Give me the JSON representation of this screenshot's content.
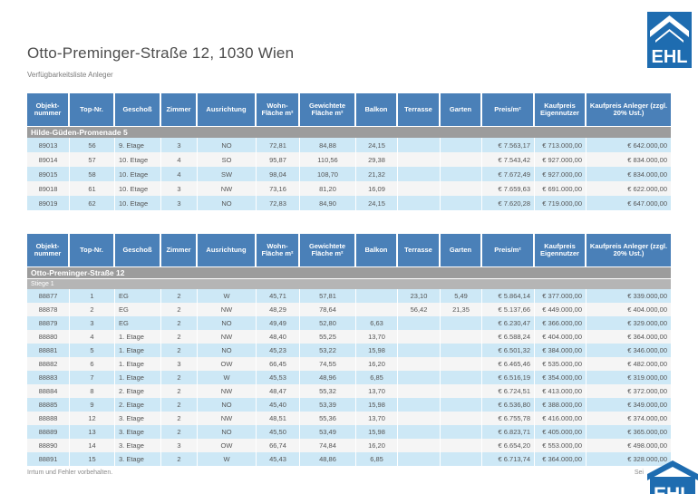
{
  "header": {
    "title": "Otto-Preminger-Straße 12, 1030 Wien",
    "subtitle": "Verfügbarkeitsliste Anleger",
    "logo_text": "EHL"
  },
  "columns": [
    "Objekt­nummer",
    "Top-Nr.",
    "Geschoß",
    "Zimmer",
    "Ausrichtung",
    "Wohn-Fläche m²",
    "Gewichtete Fläche m²",
    "Balkon",
    "Terrasse",
    "Garten",
    "Preis/m²",
    "Kaufpreis Eigennutzer",
    "Kaufpreis Anleger (zzgl. 20% Ust.)"
  ],
  "tables": [
    {
      "section": "Hilde-Güden-Promenade 5",
      "subsection": "",
      "rows": [
        [
          "89013",
          "56",
          "9. Etage",
          "3",
          "NO",
          "72,81",
          "84,88",
          "24,15",
          "",
          "",
          "€ 7.563,17",
          "€ 713.000,00",
          "€ 642.000,00"
        ],
        [
          "89014",
          "57",
          "10. Etage",
          "4",
          "SO",
          "95,87",
          "110,56",
          "29,38",
          "",
          "",
          "€ 7.543,42",
          "€ 927.000,00",
          "€ 834.000,00"
        ],
        [
          "89015",
          "58",
          "10. Etage",
          "4",
          "SW",
          "98,04",
          "108,70",
          "21,32",
          "",
          "",
          "€ 7.672,49",
          "€ 927.000,00",
          "€ 834.000,00"
        ],
        [
          "89018",
          "61",
          "10. Etage",
          "3",
          "NW",
          "73,16",
          "81,20",
          "16,09",
          "",
          "",
          "€ 7.659,63",
          "€ 691.000,00",
          "€ 622.000,00"
        ],
        [
          "89019",
          "62",
          "10. Etage",
          "3",
          "NO",
          "72,83",
          "84,90",
          "24,15",
          "",
          "",
          "€ 7.620,28",
          "€ 719.000,00",
          "€ 647.000,00"
        ]
      ]
    },
    {
      "section": "Otto-Preminger-Straße 12",
      "subsection": "Stiege 1",
      "rows": [
        [
          "88877",
          "1",
          "EG",
          "2",
          "W",
          "45,71",
          "57,81",
          "",
          "23,10",
          "5,49",
          "€ 5.864,14",
          "€ 377.000,00",
          "€ 339.000,00"
        ],
        [
          "88878",
          "2",
          "EG",
          "2",
          "NW",
          "48,29",
          "78,64",
          "",
          "56,42",
          "21,35",
          "€ 5.137,66",
          "€ 449.000,00",
          "€ 404.000,00"
        ],
        [
          "88879",
          "3",
          "EG",
          "2",
          "NO",
          "49,49",
          "52,80",
          "6,63",
          "",
          "",
          "€ 6.230,47",
          "€ 366.000,00",
          "€ 329.000,00"
        ],
        [
          "88880",
          "4",
          "1. Etage",
          "2",
          "NW",
          "48,40",
          "55,25",
          "13,70",
          "",
          "",
          "€ 6.588,24",
          "€ 404.000,00",
          "€ 364.000,00"
        ],
        [
          "88881",
          "5",
          "1. Etage",
          "2",
          "NO",
          "45,23",
          "53,22",
          "15,98",
          "",
          "",
          "€ 6.501,32",
          "€ 384.000,00",
          "€ 346.000,00"
        ],
        [
          "88882",
          "6",
          "1. Etage",
          "3",
          "OW",
          "66,45",
          "74,55",
          "16,20",
          "",
          "",
          "€ 6.465,46",
          "€ 535.000,00",
          "€ 482.000,00"
        ],
        [
          "88883",
          "7",
          "1. Etage",
          "2",
          "W",
          "45,53",
          "48,96",
          "6,85",
          "",
          "",
          "€ 6.516,19",
          "€ 354.000,00",
          "€ 319.000,00"
        ],
        [
          "88884",
          "8",
          "2. Etage",
          "2",
          "NW",
          "48,47",
          "55,32",
          "13,70",
          "",
          "",
          "€ 6.724,51",
          "€ 413.000,00",
          "€ 372.000,00"
        ],
        [
          "88885",
          "9",
          "2. Etage",
          "2",
          "NO",
          "45,40",
          "53,39",
          "15,98",
          "",
          "",
          "€ 6.536,80",
          "€ 388.000,00",
          "€ 349.000,00"
        ],
        [
          "88888",
          "12",
          "3. Etage",
          "2",
          "NW",
          "48,51",
          "55,36",
          "13,70",
          "",
          "",
          "€ 6.755,78",
          "€ 416.000,00",
          "€ 374.000,00"
        ],
        [
          "88889",
          "13",
          "3. Etage",
          "2",
          "NO",
          "45,50",
          "53,49",
          "15,98",
          "",
          "",
          "€ 6.823,71",
          "€ 405.000,00",
          "€ 365.000,00"
        ],
        [
          "88890",
          "14",
          "3. Etage",
          "3",
          "OW",
          "66,74",
          "74,84",
          "16,20",
          "",
          "",
          "€ 6.654,20",
          "€ 553.000,00",
          "€ 498.000,00"
        ],
        [
          "88891",
          "15",
          "3. Etage",
          "2",
          "W",
          "45,43",
          "48,86",
          "6,85",
          "",
          "",
          "€ 6.713,74",
          "€ 364.000,00",
          "€ 328.000,00"
        ]
      ]
    }
  ],
  "footer": {
    "disclaimer": "Irrtum und Fehler vorbehalten.",
    "page_text_partial": "Sei"
  },
  "colors": {
    "header_blue": "#4a80b8",
    "logo_blue": "#1e6cb0",
    "section_gray": "#9c9c9c",
    "subsection_gray": "#b5b5b5",
    "row_light_blue": "#cde8f6",
    "row_white": "#f5f5f5"
  }
}
